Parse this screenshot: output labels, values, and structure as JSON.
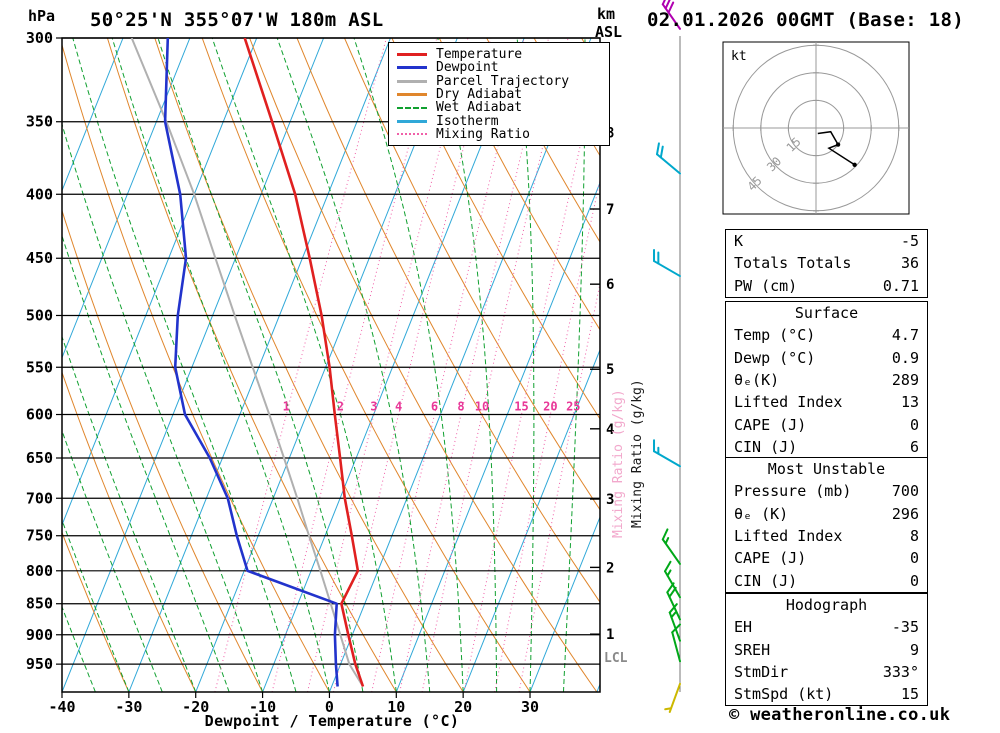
{
  "header": {
    "station": "50°25'N 355°07'W 180m ASL",
    "datetime": "02.01.2026 00GMT (Base: 18)"
  },
  "axes": {
    "pressure_unit": "hPa",
    "altitude_unit_line1": "km",
    "altitude_unit_line2": "ASL",
    "x_title": "Dewpoint / Temperature (°C)",
    "mixing_ratio_axis_label": "Mixing Ratio (g/kg)",
    "lcl_label": "LCL",
    "pressure_ticks": [
      300,
      350,
      400,
      450,
      500,
      550,
      600,
      650,
      700,
      750,
      800,
      850,
      900,
      950
    ],
    "temp_ticks": [
      -40,
      -30,
      -20,
      -10,
      0,
      10,
      20,
      30
    ],
    "km_ticks": [
      {
        "km": 1,
        "p": 899
      },
      {
        "km": 2,
        "p": 795
      },
      {
        "km": 3,
        "p": 701
      },
      {
        "km": 4,
        "p": 616
      },
      {
        "km": 5,
        "p": 552
      },
      {
        "km": 6,
        "p": 472
      },
      {
        "km": 7,
        "p": 411
      },
      {
        "km": 8,
        "p": 357
      }
    ]
  },
  "colors": {
    "temperature": "#e02020",
    "dewpoint": "#2233cc",
    "parcel": "#b0b0b0",
    "dry_adiabat": "#e0862c",
    "wet_adiabat": "#10a030",
    "isotherm": "#30a8d8",
    "mixing_ratio": "#f060a8",
    "mixing_ratio_label": "#e83898",
    "grid": "#000000"
  },
  "legend": [
    {
      "label": "Temperature",
      "color": "#e02020",
      "style": "solid"
    },
    {
      "label": "Dewpoint",
      "color": "#2233cc",
      "style": "solid"
    },
    {
      "label": "Parcel Trajectory",
      "color": "#b0b0b0",
      "style": "solid"
    },
    {
      "label": "Dry Adiabat",
      "color": "#e0862c",
      "style": "solid"
    },
    {
      "label": "Wet Adiabat",
      "color": "#10a030",
      "style": "dashed"
    },
    {
      "label": "Isotherm",
      "color": "#30a8d8",
      "style": "solid"
    },
    {
      "label": "Mixing Ratio",
      "color": "#f060a8",
      "style": "dotted"
    }
  ],
  "chart_data": {
    "type": "line",
    "subtype": "skew-t-log-p",
    "pressure_range_hpa": [
      300,
      1000
    ],
    "temp_range_at_bottom_c": [
      -40,
      40
    ],
    "isotherm_step_c": 10,
    "dry_adiabat_step_c": 10,
    "wet_adiabat_step_c": 5,
    "mixing_ratio_lines": [
      1,
      2,
      3,
      4,
      6,
      8,
      10,
      15,
      20,
      25
    ],
    "profiles": {
      "temperature": [
        [
          990,
          4.7
        ],
        [
          950,
          2.2
        ],
        [
          900,
          -0.6
        ],
        [
          850,
          -3.5
        ],
        [
          800,
          -3.0
        ],
        [
          750,
          -6.0
        ],
        [
          700,
          -9.3
        ],
        [
          650,
          -12.4
        ],
        [
          600,
          -15.8
        ],
        [
          550,
          -19.4
        ],
        [
          500,
          -23.7
        ],
        [
          450,
          -28.9
        ],
        [
          400,
          -34.9
        ],
        [
          350,
          -42.7
        ],
        [
          300,
          -51.8
        ]
      ],
      "dewpoint": [
        [
          990,
          0.9
        ],
        [
          950,
          -0.7
        ],
        [
          900,
          -2.6
        ],
        [
          850,
          -4.2
        ],
        [
          800,
          -19.5
        ],
        [
          750,
          -23.2
        ],
        [
          700,
          -26.8
        ],
        [
          650,
          -31.9
        ],
        [
          600,
          -38.2
        ],
        [
          550,
          -42.5
        ],
        [
          500,
          -45.2
        ],
        [
          450,
          -47.4
        ],
        [
          400,
          -52.1
        ],
        [
          350,
          -58.7
        ],
        [
          300,
          -63.3
        ]
      ],
      "parcel": [
        [
          990,
          4.7
        ],
        [
          950,
          1.3
        ],
        [
          900,
          -1.8
        ],
        [
          850,
          -5.1
        ],
        [
          800,
          -8.6
        ],
        [
          750,
          -12.4
        ],
        [
          700,
          -16.4
        ],
        [
          650,
          -20.8
        ],
        [
          600,
          -25.6
        ],
        [
          550,
          -30.9
        ],
        [
          500,
          -36.7
        ],
        [
          450,
          -43.0
        ],
        [
          400,
          -50.0
        ],
        [
          350,
          -58.5
        ],
        [
          300,
          -68.7
        ]
      ]
    },
    "winds": [
      {
        "p": 295,
        "dir": 325,
        "spd": 30,
        "color": "#b000b0"
      },
      {
        "p": 385,
        "dir": 310,
        "spd": 20,
        "color": "#00a8cc"
      },
      {
        "p": 465,
        "dir": 300,
        "spd": 20,
        "color": "#00a8cc"
      },
      {
        "p": 660,
        "dir": 300,
        "spd": 15,
        "color": "#00a8cc"
      },
      {
        "p": 790,
        "dir": 325,
        "spd": 15,
        "color": "#00a818"
      },
      {
        "p": 840,
        "dir": 330,
        "spd": 15,
        "color": "#00a818"
      },
      {
        "p": 875,
        "dir": 335,
        "spd": 20,
        "color": "#00a818"
      },
      {
        "p": 910,
        "dir": 340,
        "spd": 15,
        "color": "#00a818"
      },
      {
        "p": 945,
        "dir": 345,
        "spd": 10,
        "color": "#00a818"
      },
      {
        "p": 985,
        "dir": 200,
        "spd": 5,
        "color": "#ccb800"
      }
    ]
  },
  "hodograph": {
    "unit_label": "kt",
    "ring_labels_kt": [
      15,
      30,
      45
    ],
    "trace_uv_kt": [
      [
        1,
        -3
      ],
      [
        8,
        -2
      ],
      [
        12,
        -9
      ],
      [
        7,
        -11
      ],
      [
        21,
        -20
      ]
    ],
    "dots_uv_kt": [
      [
        12,
        -9
      ],
      [
        21,
        -20
      ]
    ]
  },
  "tables": [
    {
      "title": null,
      "rows": [
        [
          "K",
          "-5"
        ],
        [
          "Totals Totals",
          "36"
        ],
        [
          "PW (cm)",
          "0.71"
        ]
      ]
    },
    {
      "title": "Surface",
      "rows": [
        [
          "Temp (°C)",
          "4.7"
        ],
        [
          "Dewp (°C)",
          "0.9"
        ],
        [
          "θₑ(K)",
          "289"
        ],
        [
          "Lifted Index",
          "13"
        ],
        [
          "CAPE (J)",
          "0"
        ],
        [
          "CIN (J)",
          "6"
        ]
      ]
    },
    {
      "title": "Most Unstable",
      "rows": [
        [
          "Pressure (mb)",
          "700"
        ],
        [
          "θₑ (K)",
          "296"
        ],
        [
          "Lifted Index",
          "8"
        ],
        [
          "CAPE (J)",
          "0"
        ],
        [
          "CIN (J)",
          "0"
        ]
      ]
    },
    {
      "title": "Hodograph",
      "rows": [
        [
          "EH",
          "-35"
        ],
        [
          "SREH",
          "9"
        ],
        [
          "StmDir",
          "333°"
        ],
        [
          "StmSpd (kt)",
          "15"
        ]
      ]
    }
  ],
  "footer": "© weatheronline.co.uk"
}
